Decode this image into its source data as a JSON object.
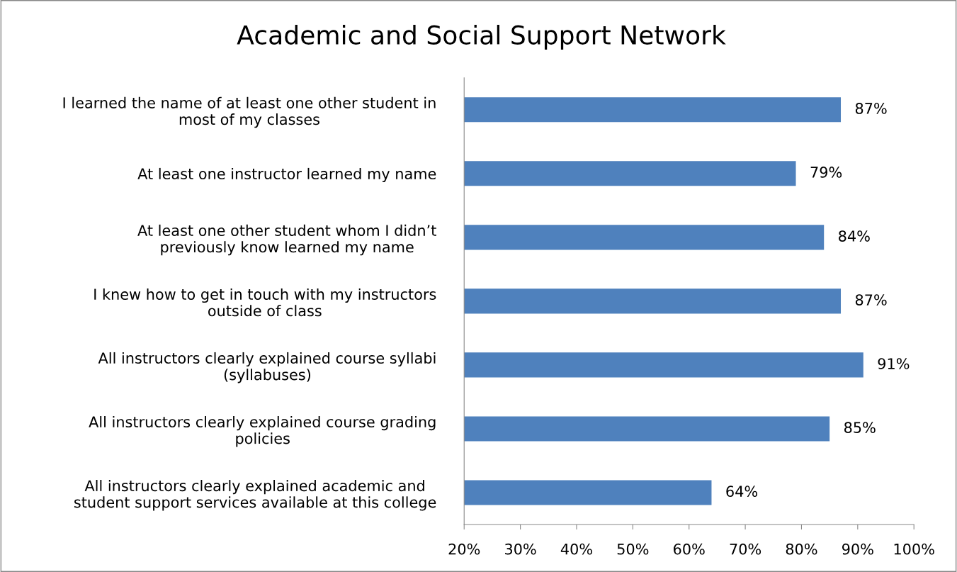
{
  "chart_data": {
    "type": "bar",
    "orientation": "horizontal",
    "title": "Academic and Social Support Network",
    "categories": [
      "I learned the name of at least one other student in\nmost of my classes",
      "At least one instructor learned my name",
      "At least one other student whom I didn’t\npreviously know learned my name",
      "I knew how to get in touch with my instructors\noutside of class",
      "All instructors clearly explained course syllabi\n(syllabuses)",
      "All instructors clearly explained course grading\npolicies",
      "All instructors clearly explained academic and\nstudent support services available at this college"
    ],
    "values": [
      87,
      79,
      84,
      87,
      91,
      85,
      64
    ],
    "value_labels": [
      "87%",
      "79%",
      "84%",
      "87%",
      "91%",
      "85%",
      "64%"
    ],
    "color": "#4f81bd",
    "xlim": [
      20,
      100
    ],
    "xticks": [
      {
        "value": 20,
        "label": "20%"
      },
      {
        "value": 30,
        "label": "30%"
      },
      {
        "value": 40,
        "label": "40%"
      },
      {
        "value": 50,
        "label": "50%"
      },
      {
        "value": 60,
        "label": "60%"
      },
      {
        "value": 70,
        "label": "70%"
      },
      {
        "value": 80,
        "label": "80%"
      },
      {
        "value": 90,
        "label": "90%"
      },
      {
        "value": 100,
        "label": "100%"
      }
    ],
    "grid": false,
    "legend": false
  }
}
